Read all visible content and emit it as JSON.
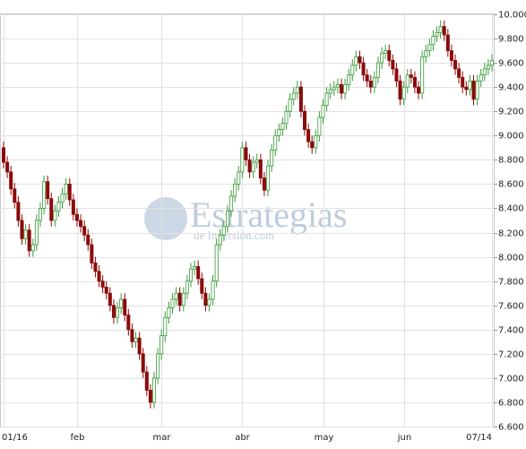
{
  "chart_data": {
    "type": "candlestick",
    "watermark": "Estrategias",
    "watermark_sub": "de Inversión.com",
    "categories": [
      "01/16",
      null,
      null,
      null,
      null,
      null,
      null,
      null,
      null,
      null,
      null,
      null,
      null,
      null,
      null,
      null,
      null,
      null,
      null,
      null,
      "feb",
      null,
      null,
      null,
      null,
      null,
      null,
      null,
      null,
      null,
      null,
      null,
      null,
      null,
      null,
      null,
      null,
      null,
      null,
      null,
      null,
      null,
      null,
      "mar",
      null,
      null,
      null,
      null,
      null,
      null,
      null,
      null,
      null,
      null,
      null,
      null,
      null,
      null,
      null,
      null,
      null,
      null,
      null,
      null,
      null,
      "abr",
      null,
      null,
      null,
      null,
      null,
      null,
      null,
      null,
      null,
      null,
      null,
      null,
      null,
      null,
      null,
      null,
      null,
      null,
      null,
      null,
      null,
      "may",
      null,
      null,
      null,
      null,
      null,
      null,
      null,
      null,
      null,
      null,
      null,
      null,
      null,
      null,
      null,
      null,
      null,
      null,
      null,
      null,
      null,
      "jun",
      null,
      null,
      null,
      null,
      null,
      null,
      null,
      null,
      null,
      null,
      null,
      null,
      null,
      null,
      null,
      null,
      null,
      null,
      null,
      null,
      null,
      null,
      null,
      "07/14"
    ],
    "open": [
      8900,
      8780,
      8700,
      8560,
      8450,
      8300,
      8150,
      8220,
      8050,
      8100,
      8300,
      8400,
      8620,
      8480,
      8300,
      8380,
      8450,
      8520,
      8600,
      8470,
      8350,
      8300,
      8250,
      8180,
      8100,
      7950,
      7880,
      7800,
      7750,
      7700,
      7600,
      7500,
      7580,
      7650,
      7520,
      7400,
      7300,
      7330,
      7200,
      7050,
      6900,
      6800,
      7000,
      7200,
      7350,
      7500,
      7580,
      7650,
      7700,
      7600,
      7700,
      7800,
      7900,
      7920,
      7820,
      7700,
      7600,
      7650,
      7800,
      8100,
      8180,
      8250,
      8380,
      8500,
      8600,
      8700,
      8900,
      8800,
      8700,
      8780,
      8800,
      8650,
      8550,
      8750,
      8880,
      9000,
      9050,
      9100,
      9200,
      9300,
      9350,
      9400,
      9200,
      9050,
      8950,
      8900,
      9000,
      9150,
      9250,
      9350,
      9380,
      9400,
      9420,
      9350,
      9420,
      9500,
      9580,
      9650,
      9600,
      9500,
      9450,
      9400,
      9480,
      9600,
      9680,
      9700,
      9620,
      9550,
      9450,
      9300,
      9400,
      9500,
      9480,
      9400,
      9350,
      9650,
      9700,
      9750,
      9820,
      9850,
      9900,
      9830,
      9700,
      9620,
      9550,
      9480,
      9400,
      9380,
      9450,
      9300,
      9450,
      9500,
      9550,
      9580
    ],
    "high": [
      8950,
      8830,
      8750,
      8610,
      8500,
      8350,
      8270,
      8270,
      8150,
      8350,
      8450,
      8670,
      8670,
      8530,
      8430,
      8500,
      8570,
      8650,
      8650,
      8520,
      8400,
      8350,
      8300,
      8230,
      8150,
      8000,
      7930,
      7850,
      7800,
      7750,
      7650,
      7630,
      7700,
      7700,
      7570,
      7450,
      7380,
      7380,
      7250,
      7100,
      6950,
      7050,
      7250,
      7400,
      7550,
      7630,
      7700,
      7750,
      7750,
      7750,
      7850,
      7950,
      7970,
      7970,
      7870,
      7750,
      7700,
      7850,
      8150,
      8230,
      8300,
      8430,
      8550,
      8650,
      8750,
      8950,
      8950,
      8850,
      8830,
      8850,
      8850,
      8700,
      8800,
      8930,
      9050,
      9100,
      9150,
      9250,
      9350,
      9400,
      9450,
      9450,
      9250,
      9100,
      9000,
      9050,
      9200,
      9300,
      9400,
      9430,
      9450,
      9470,
      9470,
      9470,
      9550,
      9630,
      9700,
      9700,
      9650,
      9550,
      9500,
      9530,
      9650,
      9730,
      9750,
      9750,
      9670,
      9600,
      9500,
      9450,
      9550,
      9550,
      9530,
      9450,
      9700,
      9750,
      9800,
      9870,
      9900,
      9950,
      9950,
      9880,
      9750,
      9670,
      9600,
      9530,
      9450,
      9500,
      9500,
      9500,
      9550,
      9600,
      9630,
      9670
    ],
    "low": [
      8730,
      8650,
      8510,
      8400,
      8250,
      8100,
      8100,
      8000,
      8000,
      8050,
      8250,
      8350,
      8430,
      8250,
      8250,
      8330,
      8400,
      8470,
      8420,
      8300,
      8250,
      8200,
      8130,
      8050,
      7900,
      7830,
      7750,
      7700,
      7650,
      7550,
      7450,
      7450,
      7530,
      7470,
      7350,
      7250,
      7250,
      7150,
      7000,
      6850,
      6750,
      6750,
      6950,
      7150,
      7300,
      7450,
      7530,
      7600,
      7550,
      7550,
      7650,
      7750,
      7850,
      7770,
      7650,
      7550,
      7550,
      7600,
      7750,
      8050,
      8130,
      8200,
      8330,
      8450,
      8550,
      8650,
      8750,
      8650,
      8650,
      8730,
      8600,
      8500,
      8500,
      8700,
      8830,
      8950,
      9000,
      9050,
      9150,
      9250,
      9300,
      9150,
      9000,
      8900,
      8850,
      8850,
      8950,
      9100,
      9200,
      9300,
      9330,
      9350,
      9300,
      9300,
      9370,
      9450,
      9530,
      9550,
      9450,
      9400,
      9350,
      9350,
      9430,
      9550,
      9630,
      9570,
      9500,
      9400,
      9250,
      9250,
      9350,
      9430,
      9350,
      9300,
      9300,
      9600,
      9650,
      9700,
      9770,
      9800,
      9780,
      9650,
      9570,
      9500,
      9430,
      9350,
      9330,
      9330,
      9250,
      9250,
      9400,
      9450,
      9500,
      9530
    ],
    "close": [
      8780,
      8700,
      8560,
      8450,
      8300,
      8150,
      8220,
      8050,
      8100,
      8300,
      8400,
      8620,
      8480,
      8300,
      8380,
      8450,
      8520,
      8600,
      8470,
      8350,
      8300,
      8250,
      8180,
      8100,
      7950,
      7880,
      7800,
      7750,
      7700,
      7600,
      7500,
      7580,
      7650,
      7520,
      7400,
      7300,
      7330,
      7200,
      7050,
      6900,
      6800,
      7000,
      7200,
      7350,
      7500,
      7580,
      7650,
      7700,
      7600,
      7700,
      7800,
      7900,
      7920,
      7820,
      7700,
      7600,
      7650,
      7800,
      8100,
      8180,
      8250,
      8380,
      8500,
      8600,
      8700,
      8900,
      8800,
      8700,
      8780,
      8800,
      8650,
      8550,
      8750,
      8880,
      9000,
      9050,
      9100,
      9200,
      9300,
      9350,
      9400,
      9200,
      9050,
      8950,
      8900,
      9000,
      9150,
      9250,
      9350,
      9380,
      9400,
      9420,
      9350,
      9420,
      9500,
      9580,
      9650,
      9600,
      9500,
      9450,
      9400,
      9480,
      9600,
      9680,
      9700,
      9620,
      9550,
      9450,
      9300,
      9400,
      9500,
      9480,
      9400,
      9350,
      9650,
      9700,
      9750,
      9820,
      9850,
      9900,
      9830,
      9700,
      9620,
      9550,
      9480,
      9400,
      9380,
      9450,
      9300,
      9450,
      9500,
      9550,
      9580,
      9620
    ],
    "up_color": "#3a9a3a",
    "down_color": "#8b0a0a",
    "ylim": [
      6600,
      10000
    ],
    "yticks": [
      {
        "value": 10000,
        "label": "10.000"
      },
      {
        "value": 9800,
        "label": "9.800"
      },
      {
        "value": 9600,
        "label": "9.600"
      },
      {
        "value": 9400,
        "label": "9.400"
      },
      {
        "value": 9200,
        "label": "9.200"
      },
      {
        "value": 9000,
        "label": "9.000"
      },
      {
        "value": 8800,
        "label": "8.800"
      },
      {
        "value": 8600,
        "label": "8.600"
      },
      {
        "value": 8400,
        "label": "8.400"
      },
      {
        "value": 8200,
        "label": "8.200"
      },
      {
        "value": 8000,
        "label": "8.000"
      },
      {
        "value": 7800,
        "label": "7.800"
      },
      {
        "value": 7600,
        "label": "7.600"
      },
      {
        "value": 7400,
        "label": "7.400"
      },
      {
        "value": 7200,
        "label": "7.200"
      },
      {
        "value": 7000,
        "label": "7.000"
      },
      {
        "value": 6800,
        "label": "6.800"
      },
      {
        "value": 6600,
        "label": "6.600"
      }
    ],
    "grid": true
  }
}
